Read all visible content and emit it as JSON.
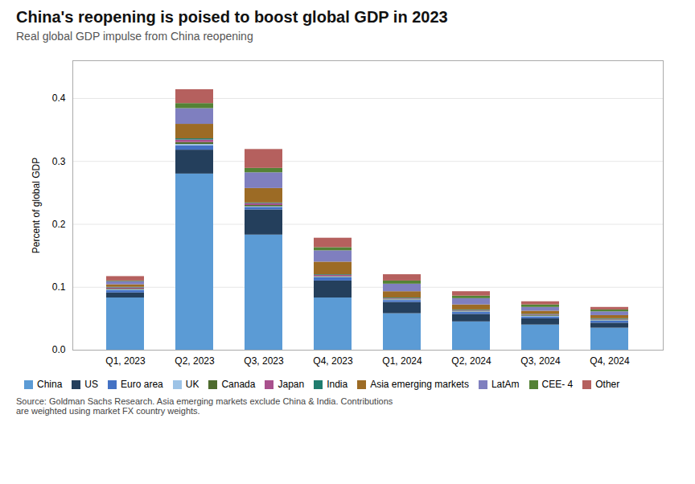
{
  "chart_data": {
    "type": "bar",
    "stacked": true,
    "title": "China's reopening is poised to boost global GDP in 2023",
    "subtitle": "Real global GDP impulse from China reopening",
    "source": "Source: Goldman Sachs Research. Asia emerging markets exclude China & India. Contributions\nare weighted using market FX country weights.",
    "ylabel": "Percent of global GDP",
    "categories": [
      "Q1, 2023",
      "Q2, 2023",
      "Q3, 2023",
      "Q4, 2023",
      "Q1, 2024",
      "Q2, 2024",
      "Q3, 2024",
      "Q4, 2024"
    ],
    "series": [
      {
        "name": "China",
        "color": "#5b9bd5",
        "values": [
          0.083,
          0.28,
          0.183,
          0.083,
          0.058,
          0.045,
          0.04,
          0.035
        ]
      },
      {
        "name": "US",
        "color": "#243f5c",
        "values": [
          0.008,
          0.038,
          0.04,
          0.027,
          0.018,
          0.012,
          0.01,
          0.008
        ]
      },
      {
        "name": "Euro area",
        "color": "#4472c4",
        "values": [
          0.004,
          0.007,
          0.004,
          0.005,
          0.003,
          0.003,
          0.003,
          0.003
        ]
      },
      {
        "name": "UK",
        "color": "#9dc3e6",
        "values": [
          0.001,
          0.002,
          0.001,
          0.001,
          0.001,
          0.001,
          0.001,
          0.001
        ]
      },
      {
        "name": "Canada",
        "color": "#4e6b2e",
        "values": [
          0.001,
          0.003,
          0.002,
          0.001,
          0.001,
          0.001,
          0.001,
          0.001
        ]
      },
      {
        "name": "Japan",
        "color": "#a9518d",
        "values": [
          0.002,
          0.004,
          0.003,
          0.002,
          0.001,
          0.001,
          0.001,
          0.001
        ]
      },
      {
        "name": "India",
        "color": "#1f7c6e",
        "values": [
          0.001,
          0.002,
          0.001,
          0.001,
          0.001,
          0.001,
          0.001,
          0.001
        ]
      },
      {
        "name": "Asia emerging markets",
        "color": "#9c6b25",
        "values": [
          0.004,
          0.023,
          0.023,
          0.02,
          0.01,
          0.008,
          0.005,
          0.005
        ]
      },
      {
        "name": "LatAm",
        "color": "#7f7fbf",
        "values": [
          0.005,
          0.025,
          0.025,
          0.018,
          0.012,
          0.01,
          0.006,
          0.006
        ]
      },
      {
        "name": "CEE- 4",
        "color": "#548235",
        "values": [
          0.001,
          0.008,
          0.007,
          0.005,
          0.005,
          0.004,
          0.004,
          0.003
        ]
      },
      {
        "name": "Other",
        "color": "#b5605e",
        "values": [
          0.007,
          0.022,
          0.03,
          0.015,
          0.01,
          0.007,
          0.005,
          0.004
        ]
      }
    ],
    "ylim": [
      0,
      0.46
    ],
    "yticks": [
      {
        "value": 0,
        "label": "0.0"
      },
      0.1,
      0.2,
      0.3,
      0.4
    ],
    "grid": true,
    "legend": "bottom"
  }
}
